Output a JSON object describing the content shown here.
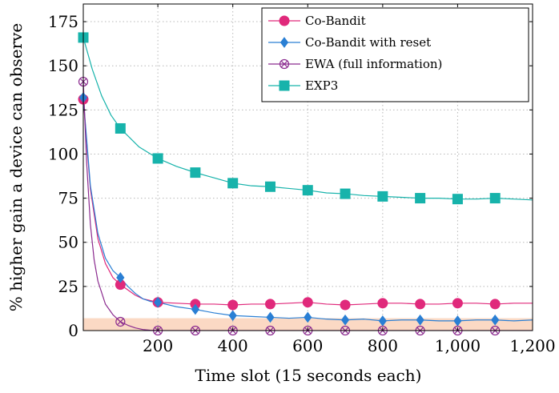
{
  "chart_data": {
    "type": "line",
    "xlabel": "Time slot (15 seconds each)",
    "ylabel": "% higher gain a device can observe",
    "xlim": [
      1,
      1200
    ],
    "ylim": [
      0,
      185
    ],
    "x_ticks": [
      200,
      400,
      600,
      800,
      1000,
      1200
    ],
    "x_tick_labels": [
      "200",
      "400",
      "600",
      "800",
      "1,000",
      "1,200"
    ],
    "y_ticks": [
      0,
      25,
      50,
      75,
      100,
      125,
      150,
      175
    ],
    "y_tick_labels": [
      "0",
      "25",
      "50",
      "75",
      "100",
      "125",
      "150",
      "175"
    ],
    "grid": true,
    "legend_position": "top-right",
    "shaded_band": {
      "y_range": [
        0,
        7
      ],
      "color": "#fbd9c4"
    },
    "series": [
      {
        "name": "Co-Bandit",
        "color": "#e0297b",
        "marker": "circle",
        "x": [
          1,
          20,
          40,
          60,
          80,
          100,
          120,
          140,
          160,
          180,
          200,
          250,
          300,
          350,
          400,
          450,
          500,
          550,
          600,
          650,
          700,
          750,
          800,
          850,
          900,
          950,
          1000,
          1050,
          1100,
          1150,
          1200
        ],
        "values": [
          131,
          80,
          52,
          38,
          30,
          26,
          23,
          20,
          18,
          17,
          16,
          15.5,
          15,
          15,
          14.5,
          15,
          15,
          15.5,
          16,
          15,
          14.5,
          15,
          15.5,
          15.5,
          15,
          15,
          15.5,
          15.5,
          15,
          15.5,
          15.5
        ],
        "marker_x": [
          1,
          100,
          200,
          300,
          400,
          500,
          600,
          700,
          800,
          900,
          1000,
          1100
        ]
      },
      {
        "name": "Co-Bandit with reset",
        "color": "#2a7fd4",
        "marker": "diamond",
        "x": [
          1,
          20,
          40,
          60,
          80,
          100,
          120,
          140,
          160,
          180,
          200,
          250,
          300,
          350,
          400,
          450,
          500,
          550,
          600,
          650,
          700,
          750,
          800,
          850,
          900,
          950,
          1000,
          1050,
          1100,
          1150,
          1200
        ],
        "values": [
          132,
          82,
          55,
          41,
          34,
          30,
          25,
          21,
          18,
          16.5,
          16,
          13.5,
          12,
          10,
          8.5,
          8,
          7.5,
          7,
          7.5,
          6.5,
          6,
          6.5,
          5.5,
          6,
          6,
          5.5,
          5.5,
          6,
          6,
          5.5,
          6
        ],
        "marker_x": [
          1,
          100,
          200,
          300,
          400,
          500,
          600,
          700,
          800,
          900,
          1000,
          1100
        ]
      },
      {
        "name": "EWA (full information)",
        "color": "#8b2b8f",
        "marker": "circled-x",
        "x": [
          1,
          10,
          20,
          30,
          40,
          60,
          80,
          100,
          120,
          140,
          160,
          180,
          200,
          300,
          400,
          500,
          600,
          700,
          800,
          900,
          1000,
          1100,
          1200
        ],
        "values": [
          141,
          95,
          60,
          40,
          28,
          15,
          9,
          5,
          3,
          1.5,
          0.6,
          0.2,
          0,
          0,
          0,
          0,
          0,
          0,
          0,
          0,
          0,
          0,
          0
        ],
        "marker_x": [
          1,
          100,
          200,
          300,
          400,
          500,
          600,
          700,
          800,
          900,
          1000,
          1100
        ]
      },
      {
        "name": "EXP3",
        "color": "#17b3ab",
        "marker": "square",
        "x": [
          1,
          25,
          50,
          75,
          100,
          150,
          200,
          250,
          300,
          350,
          400,
          450,
          500,
          550,
          600,
          650,
          700,
          750,
          800,
          850,
          900,
          950,
          1000,
          1050,
          1100,
          1150,
          1200
        ],
        "values": [
          166,
          148,
          133,
          122,
          114.5,
          104,
          97.5,
          93,
          89.5,
          86.5,
          83.5,
          82,
          81.5,
          80.5,
          79.5,
          78,
          77.5,
          76.5,
          76,
          75.5,
          75,
          75,
          74.5,
          74.5,
          75,
          74.5,
          74
        ],
        "marker_x": [
          1,
          100,
          200,
          300,
          400,
          500,
          600,
          700,
          800,
          900,
          1000,
          1100
        ]
      }
    ]
  }
}
